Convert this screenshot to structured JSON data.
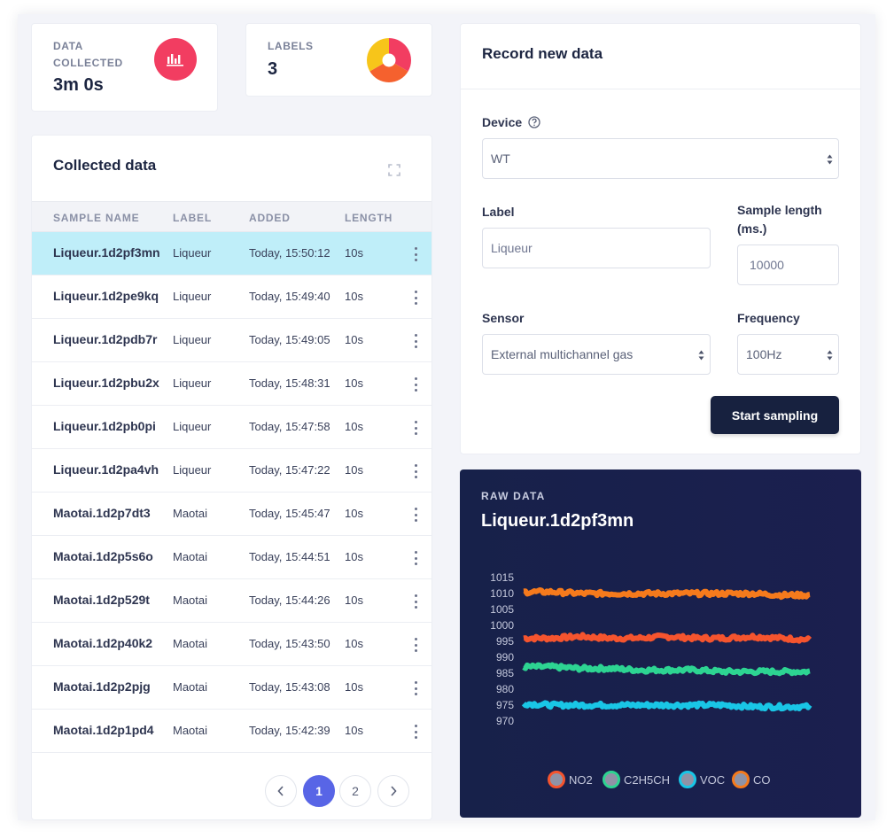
{
  "stats": {
    "data_collected": {
      "label_line1": "DATA",
      "label_line2": "COLLECTED",
      "value": "3m 0s",
      "icon": "bar-chart-icon"
    },
    "labels": {
      "label": "LABELS",
      "value": "3",
      "icon": "pie-chart-icon"
    }
  },
  "collected": {
    "title": "Collected data",
    "columns": {
      "name": "SAMPLE NAME",
      "label": "LABEL",
      "added": "ADDED",
      "length": "LENGTH"
    },
    "rows": [
      {
        "name": "Liqueur.1d2pf3mn",
        "label": "Liqueur",
        "added": "Today, 15:50:12",
        "length": "10s",
        "selected": true
      },
      {
        "name": "Liqueur.1d2pe9kq",
        "label": "Liqueur",
        "added": "Today, 15:49:40",
        "length": "10s"
      },
      {
        "name": "Liqueur.1d2pdb7r",
        "label": "Liqueur",
        "added": "Today, 15:49:05",
        "length": "10s"
      },
      {
        "name": "Liqueur.1d2pbu2x",
        "label": "Liqueur",
        "added": "Today, 15:48:31",
        "length": "10s"
      },
      {
        "name": "Liqueur.1d2pb0pi",
        "label": "Liqueur",
        "added": "Today, 15:47:58",
        "length": "10s"
      },
      {
        "name": "Liqueur.1d2pa4vh",
        "label": "Liqueur",
        "added": "Today, 15:47:22",
        "length": "10s"
      },
      {
        "name": "Maotai.1d2p7dt3",
        "label": "Maotai",
        "added": "Today, 15:45:47",
        "length": "10s"
      },
      {
        "name": "Maotai.1d2p5s6o",
        "label": "Maotai",
        "added": "Today, 15:44:51",
        "length": "10s"
      },
      {
        "name": "Maotai.1d2p529t",
        "label": "Maotai",
        "added": "Today, 15:44:26",
        "length": "10s"
      },
      {
        "name": "Maotai.1d2p40k2",
        "label": "Maotai",
        "added": "Today, 15:43:50",
        "length": "10s"
      },
      {
        "name": "Maotai.1d2p2pjg",
        "label": "Maotai",
        "added": "Today, 15:43:08",
        "length": "10s"
      },
      {
        "name": "Maotai.1d2p1pd4",
        "label": "Maotai",
        "added": "Today, 15:42:39",
        "length": "10s"
      }
    ],
    "pagination": {
      "pages": [
        "1",
        "2"
      ],
      "current": "1"
    }
  },
  "record": {
    "title": "Record new data",
    "device": {
      "label": "Device",
      "value": "WT"
    },
    "label": {
      "label": "Label",
      "value": "Liqueur"
    },
    "sample_length": {
      "label_line1": "Sample length",
      "label_line2": "(ms.)",
      "value": "10000"
    },
    "sensor": {
      "label": "Sensor",
      "value": "External multichannel gas"
    },
    "frequency": {
      "label": "Frequency",
      "value": "100Hz"
    },
    "start_button": "Start sampling"
  },
  "raw": {
    "label": "RAW DATA",
    "title": "Liqueur.1d2pf3mn"
  },
  "colors": {
    "accent": "#5865e6",
    "danger": "#f23d61",
    "selected_row": "#bfeef9",
    "dark_button": "#17213f",
    "raw_bg": "#17214a"
  },
  "chart_data": {
    "type": "line",
    "ylim": [
      970,
      1015
    ],
    "y_ticks": [
      "1015",
      "1010",
      "1005",
      "1000",
      "995",
      "990",
      "985",
      "980",
      "975",
      "970"
    ],
    "x": [
      0,
      0.1,
      0.2,
      0.3,
      0.4,
      0.5,
      0.6,
      0.7,
      0.8,
      0.9,
      1.0
    ],
    "series": [
      {
        "name": "NO2",
        "color": "#f5542e",
        "values": [
          996,
          996,
          996.5,
          996,
          996,
          996.5,
          996,
          996,
          996.5,
          996,
          995.5
        ]
      },
      {
        "name": "C2H5CH",
        "color": "#2dd492",
        "values": [
          987,
          987,
          986.5,
          986.5,
          986,
          986,
          986,
          985.5,
          985.5,
          985.5,
          985.5
        ]
      },
      {
        "name": "VOC",
        "color": "#19c6e6",
        "values": [
          975.5,
          975,
          975,
          975,
          975,
          975,
          975,
          975,
          974.5,
          974.5,
          974.5
        ]
      },
      {
        "name": "CO",
        "color": "#f57a1c",
        "values": [
          1010.5,
          1010.5,
          1010,
          1010,
          1010,
          1010,
          1010,
          1010,
          1010,
          1009.5,
          1009.5
        ]
      }
    ],
    "legend": "bottom",
    "grid": false
  }
}
